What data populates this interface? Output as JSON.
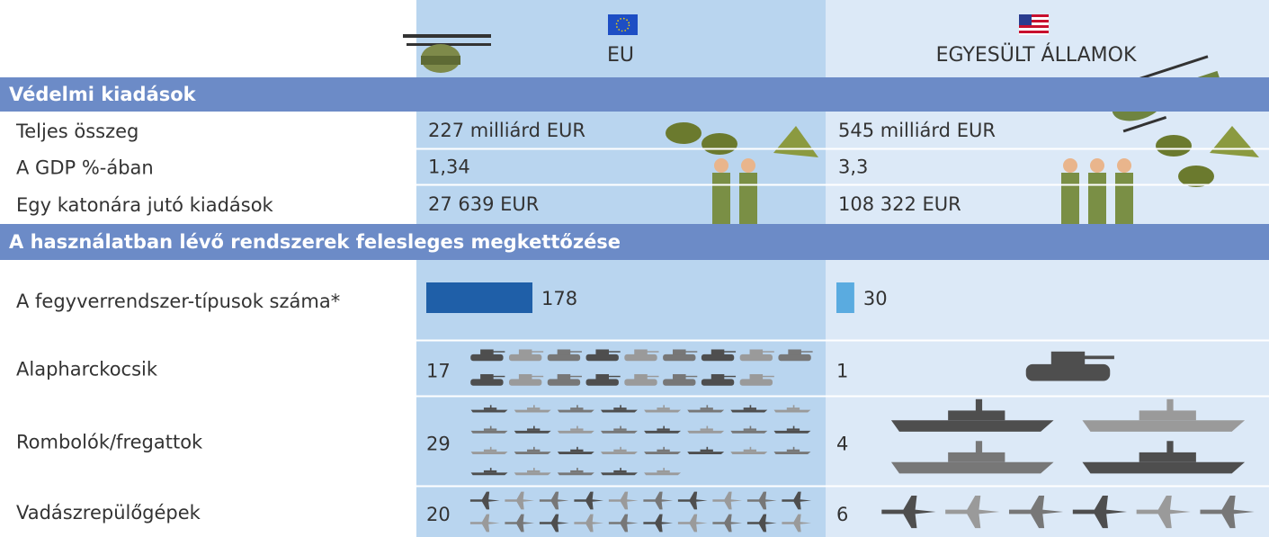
{
  "header": {
    "columns": [
      {
        "label": "EU"
      },
      {
        "label": "EGYESÜLT ÁLLAMOK"
      }
    ]
  },
  "sections": [
    {
      "title": "Védelmi kiadások",
      "rows": [
        {
          "label": "Teljes összeg",
          "cells": [
            "227 milliárd EUR",
            "545 milliárd EUR"
          ]
        },
        {
          "label": "A GDP %-ában",
          "cells": [
            "1,34",
            "3,3"
          ]
        },
        {
          "label": "Egy katonára jutó kiadások",
          "cells": [
            "27 639 EUR",
            "108 322 EUR"
          ]
        }
      ]
    },
    {
      "title": "A használatban lévő rendszerek felesleges megkettőzése",
      "rows": [
        {
          "label": "A fegyverrendszer-típusok száma*",
          "values": [
            178,
            30
          ],
          "colors": [
            "#1f5fa8",
            "#5aabe0"
          ]
        },
        {
          "label": "Alapharckocsik",
          "values": [
            17,
            1
          ]
        },
        {
          "label": "Rombolók/fregattok",
          "values": [
            29,
            4
          ]
        },
        {
          "label": "Vadászrepülőgépek",
          "values": [
            20,
            6
          ]
        }
      ]
    }
  ]
}
